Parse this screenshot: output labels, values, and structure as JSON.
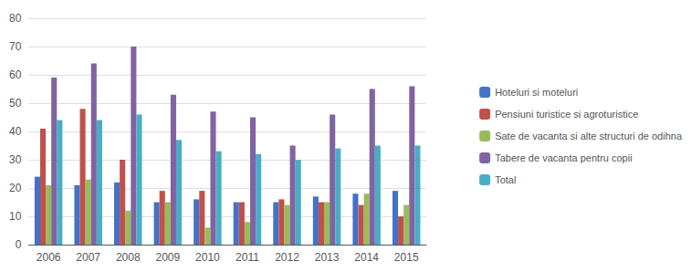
{
  "chart_data": {
    "type": "bar",
    "categories": [
      2006,
      2007,
      2008,
      2009,
      2010,
      2011,
      2012,
      2013,
      2014,
      2015
    ],
    "series": [
      {
        "name": "Hoteluri si moteluri",
        "color": "#4472C4",
        "values": [
          24,
          21,
          22,
          15,
          16,
          15,
          15,
          17,
          18,
          19
        ]
      },
      {
        "name": "Pensiuni turistice si agroturistice",
        "color": "#C0504D",
        "values": [
          41,
          48,
          30,
          19,
          19,
          15,
          16,
          15,
          14,
          10
        ]
      },
      {
        "name": "Sate de vacanta si alte structuri de odihna",
        "color": "#9BBB59",
        "values": [
          21,
          23,
          12,
          15,
          6,
          8,
          14,
          15,
          18,
          14
        ]
      },
      {
        "name": "Tabere de vacanta pentru copii",
        "color": "#8064A2",
        "values": [
          59,
          64,
          70,
          53,
          47,
          45,
          35,
          46,
          55,
          56
        ]
      },
      {
        "name": "Total",
        "color": "#4BACC6",
        "values": [
          44,
          44,
          46,
          37,
          33,
          32,
          30,
          34,
          35,
          35
        ]
      }
    ],
    "ylim": [
      0,
      80
    ],
    "yticks": [
      0,
      10,
      20,
      30,
      40,
      50,
      60,
      70,
      80
    ],
    "grid": true,
    "legend": "right"
  }
}
